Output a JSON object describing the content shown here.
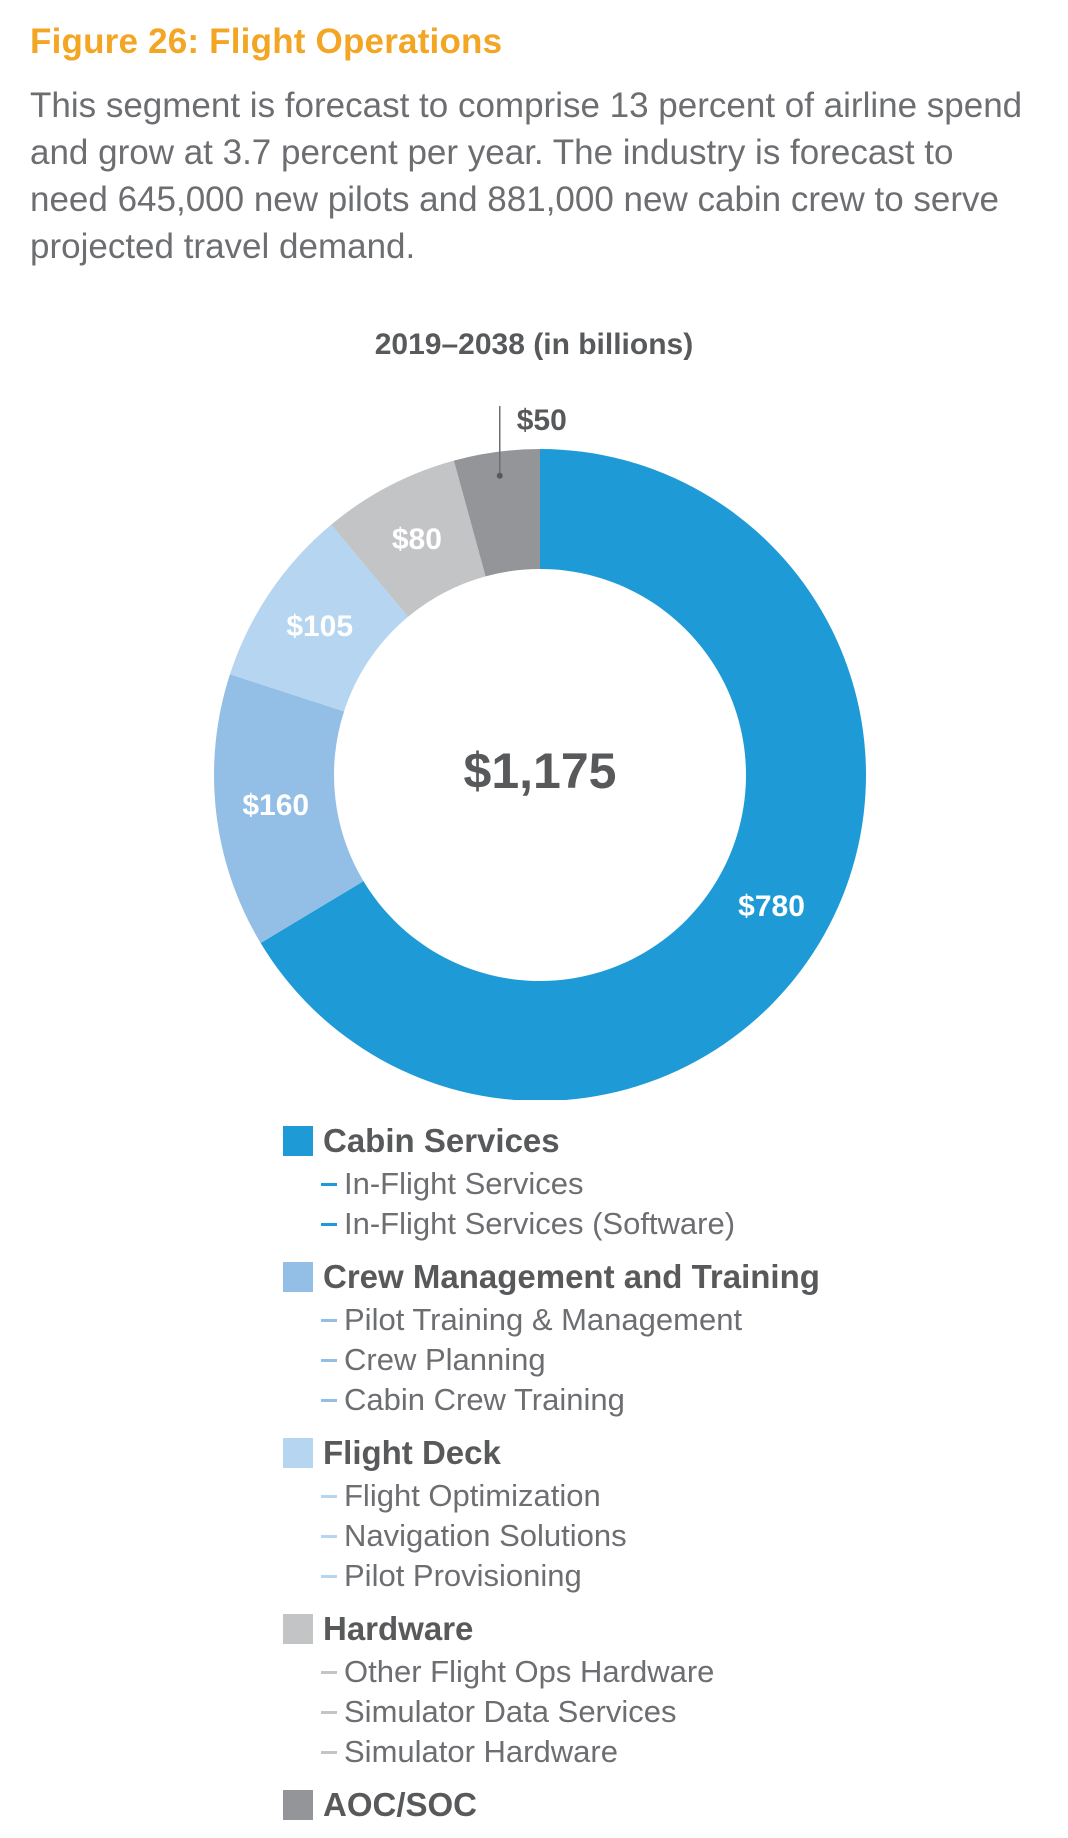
{
  "figure": {
    "title": "Figure 26: Flight Operations",
    "description": "This segment is forecast to comprise 13 percent of airline spend and grow at 3.7 percent per year. The industry is forecast to need 645,000 new pilots and 881,000 new cabin crew to serve projected travel demand."
  },
  "chart_data": {
    "type": "pie",
    "title": "2019–2038 (in billions)",
    "center_label": "$1,175",
    "total": 1175,
    "slices": [
      {
        "name": "Cabin Services",
        "value": 780,
        "label": "$780",
        "color": "#1E9BD7"
      },
      {
        "name": "Crew Management and Training",
        "value": 160,
        "label": "$160",
        "color": "#93BFE6"
      },
      {
        "name": "Flight Deck",
        "value": 105,
        "label": "$105",
        "color": "#B6D5F0"
      },
      {
        "name": "Hardware",
        "value": 80,
        "label": "$80",
        "color": "#C3C4C6"
      },
      {
        "name": "AOC/SOC",
        "value": 50,
        "label": "$50",
        "color": "#939598"
      }
    ],
    "legend": [
      {
        "label": "Cabin Services",
        "color": "#1E9BD7",
        "items": [
          "In-Flight Services",
          "In-Flight Services (Software)"
        ]
      },
      {
        "label": "Crew Management and Training",
        "color": "#93BFE6",
        "items": [
          "Pilot Training & Management",
          "Crew Planning",
          "Cabin Crew Training"
        ]
      },
      {
        "label": "Flight Deck",
        "color": "#B6D5F0",
        "items": [
          "Flight Optimization",
          "Navigation Solutions",
          "Pilot Provisioning"
        ]
      },
      {
        "label": "Hardware",
        "color": "#C3C4C6",
        "items": [
          "Other Flight Ops Hardware",
          "Simulator Data Services",
          "Simulator Hardware"
        ]
      },
      {
        "label": "AOC/SOC",
        "color": "#939598",
        "items": []
      }
    ]
  }
}
